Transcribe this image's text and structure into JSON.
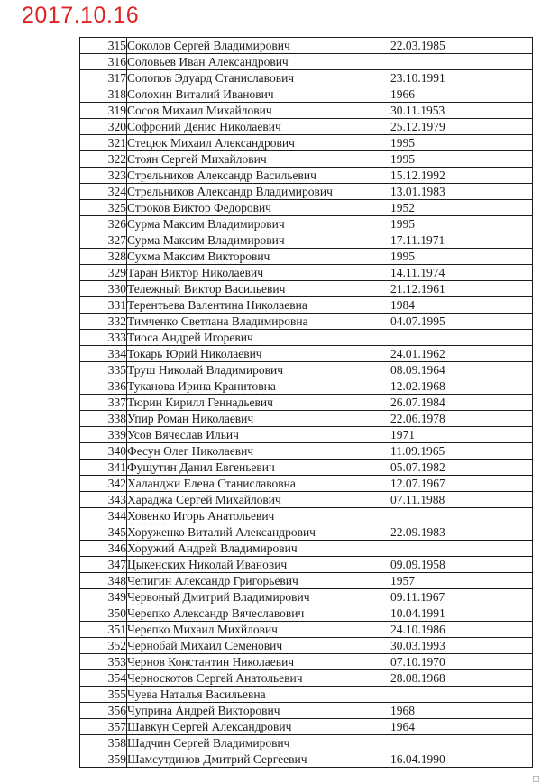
{
  "page": {
    "title": "2017.10.16"
  },
  "colors": {
    "title_red": "#e02424",
    "spellcheck_red": "#c13527",
    "table_border": "#1b1b1b"
  },
  "table": {
    "columns": [
      "number",
      "full_name",
      "birth_date"
    ],
    "rows": [
      {
        "num": "315",
        "name": "Соколов Сергей Владимирович",
        "date": "22.03.1985",
        "misspelled": []
      },
      {
        "num": "316",
        "name": "Соловьев Иван Александрович",
        "date": "",
        "misspelled": []
      },
      {
        "num": "317",
        "name": "Солопов Эдуард Станиславович",
        "date": "23.10.1991",
        "misspelled": []
      },
      {
        "num": "318",
        "name": "Солохин Виталий Иванович",
        "date": "1966",
        "misspelled": [
          "Солохин"
        ]
      },
      {
        "num": "319",
        "name": "Сосов Михаил Михайлович",
        "date": "30.11.1953",
        "misspelled": [
          "Сосов"
        ]
      },
      {
        "num": "320",
        "name": "Софроний Денис Николаевич",
        "date": "25.12.1979",
        "misspelled": [
          "Софроний"
        ]
      },
      {
        "num": "321",
        "name": "Стецюк Михаил Александрович",
        "date": "1995",
        "misspelled": []
      },
      {
        "num": "322",
        "name": "Стоян Сергей Михайлович",
        "date": "1995",
        "misspelled": [
          "Стоян"
        ]
      },
      {
        "num": "323",
        "name": "Стрельников Александр Васильевич",
        "date": "15.12.1992",
        "misspelled": [
          "Стрельников"
        ]
      },
      {
        "num": "324",
        "name": "Стрельников Александр Владимирович",
        "date": "13.01.1983",
        "misspelled": [
          "Стрельников"
        ]
      },
      {
        "num": "325",
        "name": "Строков Виктор Федорович",
        "date": "1952",
        "misspelled": []
      },
      {
        "num": "326",
        "name": "Сурма Максим Владимирович",
        "date": "1995",
        "misspelled": []
      },
      {
        "num": "327",
        "name": "Сурма Максим Владимирович",
        "date": "17.11.1971",
        "misspelled": []
      },
      {
        "num": "328",
        "name": "Сухма Максим Викторович",
        "date": "1995",
        "misspelled": [
          "Сухма"
        ]
      },
      {
        "num": "329",
        "name": "Таран Виктор Николаевич",
        "date": "14.11.1974",
        "misspelled": []
      },
      {
        "num": "330",
        "name": "Тележный Виктор Васильевич",
        "date": "21.12.1961",
        "misspelled": []
      },
      {
        "num": "331",
        "name": "Терентьева Валентина Николаевна",
        "date": "1984",
        "misspelled": []
      },
      {
        "num": "332",
        "name": "Тимченко Светлана Владимировна",
        "date": "04.07.1995",
        "misspelled": []
      },
      {
        "num": "333",
        "name": "Тиоса Андрей Игоревич",
        "date": "",
        "misspelled": [
          "Тиоса"
        ]
      },
      {
        "num": "334",
        "name": "Токарь Юрий Николаевич",
        "date": "24.01.1962",
        "misspelled": []
      },
      {
        "num": "335",
        "name": "Труш Николай Владимирович",
        "date": "08.09.1964",
        "misspelled": [
          "Труш"
        ]
      },
      {
        "num": "336",
        "name": "Туканова Ирина Кранитовна",
        "date": "12.02.1968",
        "misspelled": [
          "Туканова",
          "Кранитовна"
        ]
      },
      {
        "num": "337",
        "name": "Тюрин Кирилл Геннадьевич",
        "date": "26.07.1984",
        "misspelled": []
      },
      {
        "num": "338",
        "name": "Упир Роман Николаевич",
        "date": "22.06.1978",
        "misspelled": [
          "Упир"
        ]
      },
      {
        "num": "339",
        "name": "Усов Вячеслав Ильич",
        "date": "1971",
        "misspelled": []
      },
      {
        "num": "340",
        "name": "Фесун Олег Николаевич",
        "date": "11.09.1965",
        "misspelled": [
          "Фесун"
        ]
      },
      {
        "num": "341",
        "name": "Фущутин Данил Евгеньевич",
        "date": "05.07.1982",
        "misspelled": [
          "Фущутин"
        ]
      },
      {
        "num": "342",
        "name": "Халанджи Елена Станиславовна",
        "date": "12.07.1967",
        "misspelled": [
          "Халанджи"
        ]
      },
      {
        "num": "343",
        "name": "Хараджа Сергей Михайлович",
        "date": "07.11.1988",
        "misspelled": []
      },
      {
        "num": "344",
        "name": "Ховенко Игорь Анатольевич",
        "date": "",
        "misspelled": [
          "Ховенко"
        ]
      },
      {
        "num": "345",
        "name": "Хоруженко Виталий Александрович",
        "date": "22.09.1983",
        "misspelled": [
          "Хоруженко"
        ]
      },
      {
        "num": "346",
        "name": "Хоружий Андрей Владимирович",
        "date": "",
        "misspelled": [
          "Хоружий"
        ]
      },
      {
        "num": "347",
        "name": "Цыкенских Николай Иванович",
        "date": "09.09.1958",
        "misspelled": [
          "Цыкенских"
        ]
      },
      {
        "num": "348",
        "name": "Чепигин Александр Григорьевич",
        "date": "1957",
        "misspelled": [
          "Чепигин"
        ]
      },
      {
        "num": "349",
        "name": "Червоный Дмитрий Владимирович",
        "date": "09.11.1967",
        "misspelled": [
          "Червоный"
        ]
      },
      {
        "num": "350",
        "name": "Черепко Александр Вячеславович",
        "date": "10.04.1991",
        "misspelled": [
          "Черепко"
        ]
      },
      {
        "num": "351",
        "name": "Черепко Михаил Михйлович",
        "date": "24.10.1986",
        "misspelled": [
          "Черепко",
          "Михйлович"
        ]
      },
      {
        "num": "352",
        "name": "Чернобай Михаил Семенович",
        "date": "30.03.1993",
        "misspelled": []
      },
      {
        "num": "353",
        "name": "Чернов Константин Николаевич",
        "date": "07.10.1970",
        "misspelled": []
      },
      {
        "num": "354",
        "name": "Черноскотов Сергей Анатольевич",
        "date": "28.08.1968",
        "misspelled": [
          "Черноскотов"
        ]
      },
      {
        "num": "355",
        "name": "Чуева Наталья Васильевна",
        "date": "",
        "misspelled": []
      },
      {
        "num": "356",
        "name": "Чуприна Андрей Викторович",
        "date": "1968",
        "misspelled": []
      },
      {
        "num": "357",
        "name": "Шавкун Сергей Александрович",
        "date": "1964",
        "misspelled": [
          "Шавкун"
        ]
      },
      {
        "num": "358",
        "name": "Шадчин Сергей Владимирович",
        "date": "",
        "misspelled": [
          "Шадчин"
        ]
      },
      {
        "num": "359",
        "name": "Шамсутдинов Дмитрий Сергеевич",
        "date": "16.04.1990",
        "misspelled": []
      }
    ]
  }
}
